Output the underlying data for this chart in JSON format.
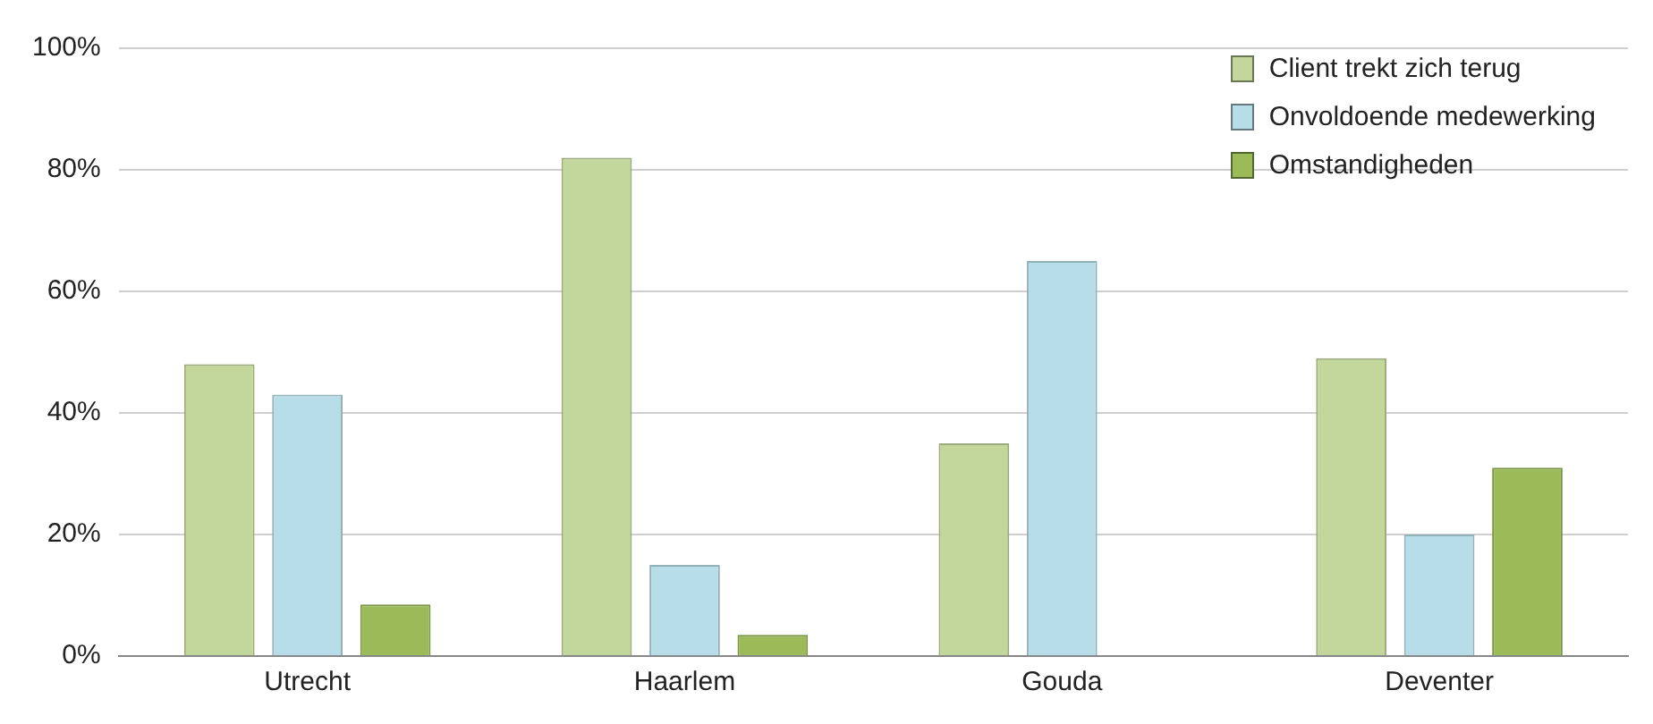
{
  "chart_data": {
    "type": "bar",
    "categories": [
      "Utrecht",
      "Haarlem",
      "Gouda",
      "Deventer"
    ],
    "series": [
      {
        "name": "Client trekt zich terug",
        "color": "#c3d69b",
        "values": [
          48,
          82,
          35,
          49
        ]
      },
      {
        "name": "Onvoldoende medewerking",
        "color": "#b7dee8",
        "values": [
          43,
          15,
          65,
          20
        ]
      },
      {
        "name": "Omstandigheden",
        "color": "#9bbb59",
        "values": [
          8.5,
          3.5,
          0,
          31
        ]
      }
    ],
    "ylim": [
      0,
      100
    ],
    "yticks": [
      {
        "value": 0,
        "label": "0%"
      },
      {
        "value": 20,
        "label": "20%"
      },
      {
        "value": 40,
        "label": "40%"
      },
      {
        "value": 60,
        "label": "60%"
      },
      {
        "value": 80,
        "label": "80%"
      },
      {
        "value": 100,
        "label": "100%"
      }
    ],
    "grid": "y",
    "legend": "top right"
  }
}
